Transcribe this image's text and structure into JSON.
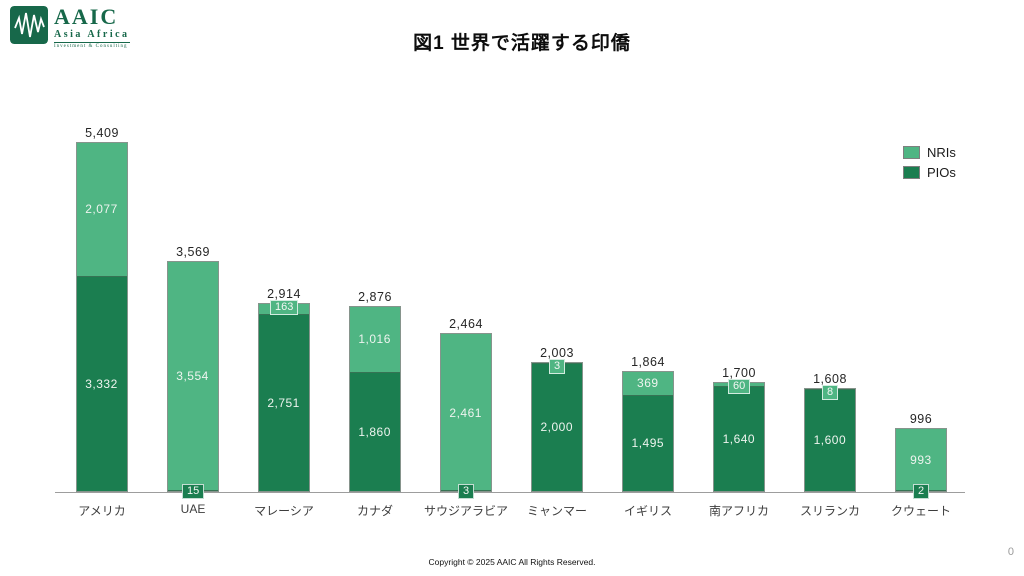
{
  "logo": {
    "name": "AAIC",
    "subtitle": "Asia Africa",
    "tagline": "Investment & Consulting",
    "brand_color": "#17684a"
  },
  "header": {
    "title": "図1 世界で活躍する印僑"
  },
  "chart_data": {
    "type": "bar",
    "stacked": true,
    "title": "図1 世界で活躍する印僑",
    "categories": [
      "アメリカ",
      "UAE",
      "マレーシア",
      "カナダ",
      "サウジアラビア",
      "ミャンマー",
      "イギリス",
      "南アフリカ",
      "スリランカ",
      "クウェート"
    ],
    "series": [
      {
        "name": "NRIs",
        "color": "#4fb583",
        "values": [
          2077,
          3554,
          163,
          1016,
          2461,
          3,
          369,
          60,
          8,
          993
        ]
      },
      {
        "name": "PIOs",
        "color": "#1b7e50",
        "values": [
          3332,
          15,
          2751,
          1860,
          3,
          2000,
          1495,
          1640,
          1600,
          2
        ]
      }
    ],
    "totals": [
      5409,
      3569,
      2914,
      2876,
      2464,
      2003,
      1864,
      1700,
      1608,
      996
    ],
    "legend": [
      "NRIs",
      "PIOs"
    ],
    "legend_position": "top-right",
    "xlabel": "",
    "ylabel": "",
    "y_axis_visible": false,
    "grid": false,
    "ylim": [
      0,
      5500
    ]
  },
  "footer": {
    "copyright": "Copyright © 2025 AAIC All Rights Reserved.",
    "page_number": "0"
  }
}
